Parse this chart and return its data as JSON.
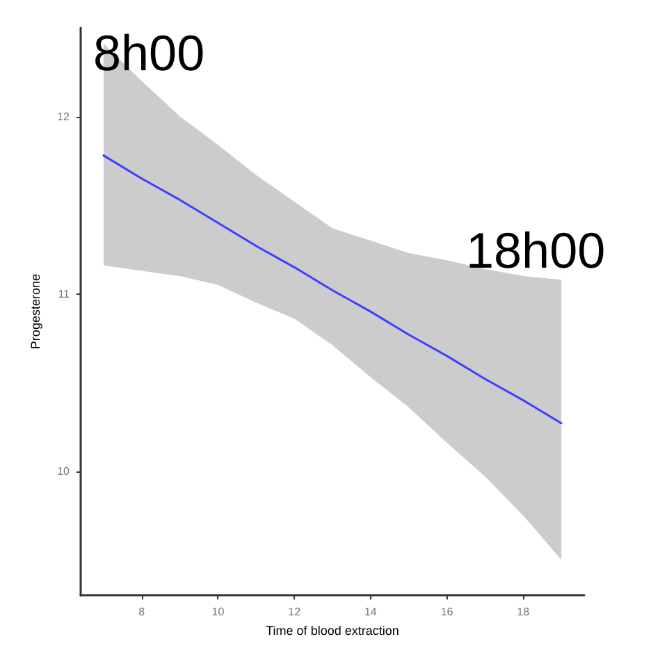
{
  "chart_data": {
    "type": "line",
    "xlabel": "Time of blood extraction",
    "ylabel": "Progesterone",
    "x": [
      7,
      8,
      9,
      10,
      11,
      12,
      13,
      14,
      15,
      16,
      17,
      18,
      19
    ],
    "series": [
      {
        "color": "#3f3fff",
        "values": [
          11.78,
          11.65,
          11.53,
          11.4,
          11.27,
          11.15,
          11.02,
          10.9,
          10.77,
          10.65,
          10.52,
          10.4,
          10.27
        ],
        "lower": [
          11.16,
          11.13,
          11.1,
          11.05,
          10.95,
          10.86,
          10.71,
          10.53,
          10.36,
          10.16,
          9.97,
          9.75,
          9.5
        ],
        "upper": [
          12.41,
          12.2,
          12.0,
          11.84,
          11.67,
          11.52,
          11.37,
          11.3,
          11.23,
          11.19,
          11.14,
          11.1,
          11.08
        ]
      }
    ],
    "xlim": [
      6.4,
      19.6
    ],
    "ylim": [
      9.3,
      12.5
    ],
    "xticks": [
      8,
      10,
      12,
      14,
      16,
      18
    ],
    "yticks": [
      10,
      11,
      12
    ],
    "grid": false,
    "marker": "none",
    "line_style": "solid",
    "annotations": [
      "8h00",
      "18h00"
    ]
  }
}
